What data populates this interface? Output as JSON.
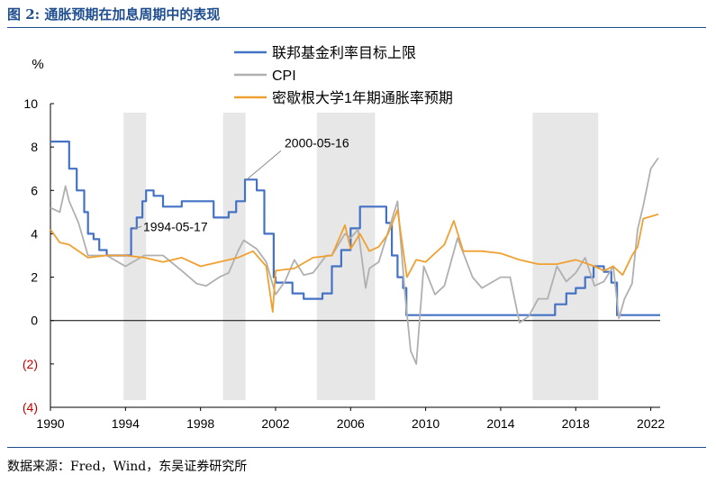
{
  "header": {
    "title": "图 2: 通胀预期在加息周期中的表现"
  },
  "footer": {
    "source": "数据来源：Fred，Wind，东吴证券研究所"
  },
  "colors": {
    "fed": "#4472c4",
    "cpi": "#b0b0b0",
    "umich": "#f0a030",
    "recession": "#e7e7e7",
    "negative_tick": "#c00000",
    "accent": "#1f4e8f"
  },
  "chart_data": {
    "type": "line",
    "title": "",
    "ylabel": "%",
    "xlabel": "",
    "xlim": [
      1990,
      2022.5
    ],
    "ylim": [
      -4,
      10
    ],
    "grid": false,
    "legend_position": "top-center",
    "x_ticks": [
      "1990",
      "1994",
      "1998",
      "2002",
      "2006",
      "2010",
      "2014",
      "2018",
      "2022"
    ],
    "y_ticks": [
      "10",
      "8",
      "6",
      "4",
      "2",
      "0",
      "(2)",
      "(4)"
    ],
    "shaded_periods": [
      [
        1993.9,
        1995.1
      ],
      [
        1999.2,
        2000.4
      ],
      [
        2004.2,
        2007.3
      ],
      [
        2015.7,
        2019.2
      ]
    ],
    "annotations": [
      {
        "text": "2000-05-16",
        "x": 2000.37,
        "y": 6.5
      },
      {
        "text": "1994-05-17",
        "x": 1994.37,
        "y": 4.25
      }
    ],
    "series": [
      {
        "name": "联邦基金利率目标上限",
        "color": "#4472c4",
        "x": [
          1990,
          1990.8,
          1991.0,
          1991.4,
          1991.8,
          1992.0,
          1992.3,
          1992.6,
          1993.0,
          1994.0,
          1994.3,
          1994.6,
          1994.9,
          1995.1,
          1995.5,
          1996.0,
          1997.0,
          1997.3,
          1998.0,
          1998.7,
          1999.0,
          1999.5,
          1999.9,
          2000.37,
          2001.0,
          2001.4,
          2001.9,
          2002.0,
          2002.9,
          2003.5,
          2004.5,
          2005.0,
          2005.5,
          2006.0,
          2006.5,
          2007.6,
          2007.9,
          2008.2,
          2008.5,
          2008.8,
          2008.97,
          2009,
          2010,
          2012,
          2014,
          2015.95,
          2016.9,
          2017.5,
          2018.0,
          2018.5,
          2018.95,
          2019.5,
          2019.9,
          2020.2,
          2020.5,
          2021,
          2022,
          2022.5
        ],
        "y": [
          8.25,
          8.25,
          7.0,
          6.0,
          5.0,
          4.0,
          3.75,
          3.25,
          3.0,
          3.0,
          4.25,
          4.75,
          5.5,
          6.0,
          5.75,
          5.25,
          5.5,
          5.5,
          5.5,
          4.75,
          4.75,
          5.0,
          5.5,
          6.5,
          6.0,
          4.0,
          2.0,
          1.75,
          1.25,
          1.0,
          1.25,
          2.5,
          3.25,
          4.25,
          5.25,
          5.25,
          4.5,
          3.0,
          2.0,
          1.5,
          0.25,
          0.25,
          0.25,
          0.25,
          0.25,
          0.25,
          0.75,
          1.25,
          1.5,
          2.0,
          2.5,
          2.25,
          1.75,
          0.25,
          0.25,
          0.25,
          0.25,
          0.25
        ]
      },
      {
        "name": "CPI",
        "color": "#b0b0b0",
        "x": [
          1990,
          1990.5,
          1990.8,
          1991.0,
          1991.5,
          1992,
          1993,
          1994,
          1995,
          1996,
          1997,
          1997.8,
          1998.3,
          1999,
          1999.5,
          2000,
          2000.3,
          2001,
          2001.5,
          2002,
          2002.5,
          2003,
          2003.5,
          2004,
          2004.7,
          2005.0,
          2005.7,
          2006,
          2006.4,
          2006.8,
          2007,
          2007.5,
          2008,
          2008.5,
          2008.9,
          2009.2,
          2009.5,
          2009.9,
          2010.5,
          2011,
          2011.7,
          2012.5,
          2013,
          2014,
          2014.5,
          2015,
          2015.5,
          2016,
          2016.5,
          2017,
          2017.5,
          2018,
          2018.5,
          2019,
          2019.5,
          2020,
          2020.3,
          2020.6,
          2021,
          2021.3,
          2021.6,
          2022,
          2022.4
        ],
        "y": [
          5.2,
          5.0,
          6.2,
          5.5,
          4.5,
          3.0,
          3.0,
          2.5,
          3.0,
          3.0,
          2.3,
          1.7,
          1.6,
          2.0,
          2.2,
          3.2,
          3.7,
          3.3,
          2.7,
          1.2,
          1.8,
          2.8,
          2.1,
          2.2,
          3.0,
          3.0,
          4.0,
          3.8,
          4.2,
          1.5,
          2.4,
          2.7,
          4.1,
          5.5,
          1.2,
          -1.4,
          -2.0,
          2.5,
          1.2,
          1.6,
          3.8,
          2.0,
          1.5,
          2.0,
          2.0,
          -0.1,
          0.2,
          1.0,
          1.0,
          2.5,
          1.8,
          2.2,
          2.9,
          1.6,
          1.8,
          2.5,
          0.1,
          1.0,
          1.7,
          4.2,
          5.3,
          7.0,
          7.5
        ]
      },
      {
        "name": "密歇根大学1年期通胀率预期",
        "color": "#f0a030",
        "x": [
          1990,
          1990.5,
          1991,
          1992,
          1993,
          1994,
          1995,
          1996,
          1997,
          1998,
          1999,
          2000,
          2000.8,
          2001.2,
          2001.5,
          2001.85,
          2002,
          2003,
          2004,
          2005,
          2005.7,
          2006,
          2006.5,
          2007,
          2007.5,
          2008,
          2008.5,
          2009,
          2009.5,
          2010,
          2011,
          2011.5,
          2012,
          2013,
          2014,
          2015,
          2016,
          2017,
          2018,
          2019,
          2019.5,
          2020,
          2020.5,
          2021,
          2021.3,
          2021.6,
          2022,
          2022.4
        ],
        "y": [
          4.2,
          3.6,
          3.5,
          2.9,
          3.0,
          3.0,
          2.9,
          2.7,
          2.9,
          2.5,
          2.7,
          2.9,
          3.2,
          2.8,
          2.5,
          0.4,
          2.3,
          2.4,
          2.9,
          3.0,
          4.4,
          3.3,
          4.0,
          3.2,
          3.4,
          4.0,
          5.1,
          2.0,
          2.8,
          2.7,
          3.5,
          4.6,
          3.2,
          3.2,
          3.1,
          2.8,
          2.6,
          2.6,
          2.8,
          2.5,
          2.3,
          2.5,
          2.1,
          3.0,
          3.4,
          4.7,
          4.8,
          4.9
        ]
      }
    ]
  }
}
